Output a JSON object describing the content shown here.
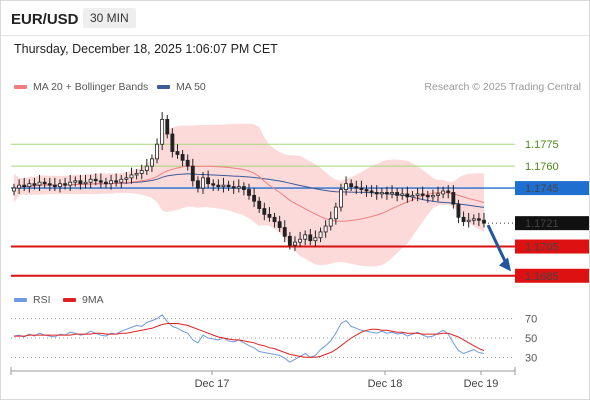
{
  "header": {
    "pair": "EUR/USD",
    "timeframe": "30 MIN"
  },
  "datetime": "Thursday, December 18, 2025 1:06:07 PM CET",
  "legend": {
    "ma20": "MA 20 + Bollinger Bands",
    "ma50": "MA 50",
    "credit": "Research © 2025 Trading Central",
    "rsi": "RSI",
    "rsi_ma": "9MA"
  },
  "colors": {
    "ma20": "#f08080",
    "bands_fill": "#fbd4d4",
    "ma50": "#3d5a99",
    "resistance": "#a8d878",
    "support": "#dd1111",
    "current": "#1f6fd0",
    "current_label_bg": "#111111",
    "arrow": "#2255a0",
    "rsi_line": "#6f9ae0",
    "rsi_ma_line": "#e02020",
    "candle": "#222222"
  },
  "chart_data": [
    {
      "type": "candlestick",
      "title": "EUR/USD 30 MIN",
      "x_tick_labels": [
        "Dec 17",
        "Dec 18",
        "Dec 19"
      ],
      "ylim": [
        1.1678,
        1.1808
      ],
      "close_series": [
        1.1745,
        1.1747,
        1.1746,
        1.1748,
        1.1747,
        1.1749,
        1.1748,
        1.1747,
        1.1746,
        1.1748,
        1.1747,
        1.1749,
        1.175,
        1.1748,
        1.1749,
        1.1751,
        1.175,
        1.1749,
        1.1748,
        1.175,
        1.1749,
        1.1751,
        1.1752,
        1.1754,
        1.1755,
        1.1757,
        1.176,
        1.1765,
        1.1775,
        1.1792,
        1.1782,
        1.177,
        1.1768,
        1.1764,
        1.176,
        1.175,
        1.1745,
        1.1752,
        1.1748,
        1.1747,
        1.1746,
        1.1747,
        1.1746,
        1.1745,
        1.1746,
        1.1744,
        1.174,
        1.1736,
        1.1731,
        1.1727,
        1.1725,
        1.1722,
        1.1718,
        1.1712,
        1.1706,
        1.1708,
        1.171,
        1.1713,
        1.1709,
        1.1711,
        1.1715,
        1.1719,
        1.1724,
        1.1732,
        1.1744,
        1.1748,
        1.1746,
        1.1745,
        1.1744,
        1.1743,
        1.1742,
        1.1741,
        1.1742,
        1.1741,
        1.1742,
        1.174,
        1.1741,
        1.1739,
        1.174,
        1.1741,
        1.174,
        1.1739,
        1.174,
        1.1741,
        1.1743,
        1.1742,
        1.1734,
        1.1725,
        1.1722,
        1.1723,
        1.1724,
        1.1723,
        1.1721
      ],
      "current_price": 1.1721,
      "resistance_levels": [
        1.1775,
        1.176,
        1.1745
      ],
      "support_levels": [
        1.1705,
        1.1685
      ],
      "forecast_arrow": {
        "from": 1.1721,
        "to": 1.1688
      },
      "price_labels": [
        "1.1775",
        "1.1760",
        "1.1745",
        "1.1721",
        "1.1705",
        "1.1685"
      ]
    },
    {
      "type": "line",
      "title": "RSI",
      "ylim": [
        20,
        80
      ],
      "y_ticks": [
        70,
        50,
        30
      ],
      "series": [
        {
          "name": "RSI",
          "values": [
            52,
            53,
            51,
            54,
            52,
            55,
            53,
            52,
            51,
            54,
            53,
            56,
            55,
            53,
            54,
            57,
            55,
            53,
            52,
            55,
            54,
            57,
            59,
            61,
            63,
            62,
            66,
            68,
            70,
            74,
            67,
            62,
            60,
            57,
            55,
            48,
            45,
            53,
            50,
            49,
            48,
            50,
            47,
            46,
            48,
            45,
            42,
            40,
            36,
            35,
            34,
            33,
            32,
            29,
            25,
            28,
            31,
            34,
            30,
            32,
            38,
            42,
            47,
            55,
            65,
            68,
            62,
            60,
            58,
            57,
            56,
            55,
            57,
            55,
            56,
            54,
            55,
            52,
            54,
            56,
            53,
            51,
            52,
            55,
            58,
            54,
            45,
            37,
            34,
            36,
            38,
            35,
            34
          ]
        },
        {
          "name": "9MA",
          "values": [
            52,
            52,
            52,
            53,
            53,
            53,
            53,
            53,
            53,
            53,
            53,
            53,
            54,
            54,
            54,
            54,
            55,
            55,
            54,
            54,
            54,
            55,
            55,
            56,
            57,
            58,
            59,
            60,
            62,
            64,
            65,
            65,
            65,
            64,
            63,
            61,
            59,
            57,
            55,
            53,
            51,
            50,
            49,
            48,
            48,
            47,
            46,
            45,
            43,
            42,
            40,
            39,
            37,
            35,
            33,
            32,
            31,
            30,
            30,
            30,
            31,
            33,
            35,
            38,
            42,
            46,
            50,
            53,
            56,
            58,
            59,
            59,
            58,
            58,
            57,
            56,
            56,
            55,
            55,
            55,
            54,
            54,
            54,
            54,
            55,
            55,
            53,
            51,
            48,
            45,
            42,
            39,
            37
          ]
        }
      ]
    }
  ]
}
